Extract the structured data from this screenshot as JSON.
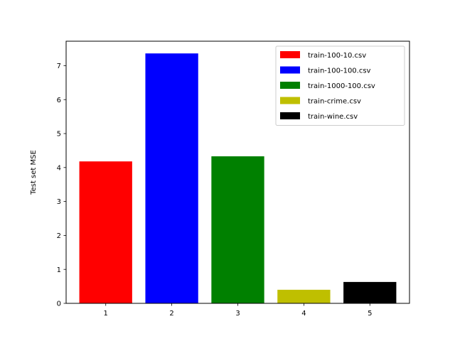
{
  "chart_data": {
    "type": "bar",
    "categories": [
      "1",
      "2",
      "3",
      "4",
      "5"
    ],
    "values": [
      4.18,
      7.36,
      4.33,
      0.4,
      0.63
    ],
    "colors": [
      "#ff0000",
      "#0000ff",
      "#008000",
      "#bfbf00",
      "#000000"
    ],
    "legend": [
      "train-100-10.csv",
      "train-100-100.csv",
      "train-1000-100.csv",
      "train-crime.csv",
      "train-wine.csv"
    ],
    "legend_position": "top-right",
    "title": "",
    "xlabel": "",
    "ylabel": "Test set MSE",
    "ylim": [
      0,
      7.72
    ],
    "xlim": [
      0.4,
      5.6
    ],
    "yticks": [
      0,
      1,
      2,
      3,
      4,
      5,
      6,
      7
    ],
    "grid": false
  }
}
